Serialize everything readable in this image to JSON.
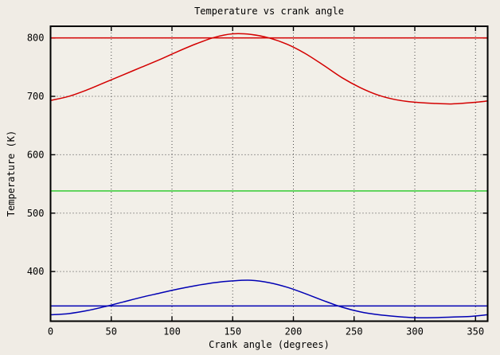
{
  "chart_data": {
    "type": "line",
    "title": "Temperature vs crank angle",
    "xlabel": "Crank angle (degrees)",
    "ylabel": "Temperature (K)",
    "xlim": [
      0,
      360
    ],
    "ylim": [
      315,
      820
    ],
    "x_ticks": [
      0,
      50,
      100,
      150,
      200,
      250,
      300,
      350
    ],
    "y_ticks": [
      400,
      500,
      600,
      700,
      800
    ],
    "grid": true,
    "legend": "none",
    "series": [
      {
        "name": "red-curve",
        "color": "#d40000",
        "style": "curve",
        "x": [
          0,
          15,
          30,
          45,
          60,
          75,
          90,
          105,
          120,
          135,
          150,
          165,
          180,
          195,
          210,
          225,
          240,
          255,
          270,
          285,
          300,
          315,
          330,
          345,
          360
        ],
        "y": [
          693,
          700,
          711,
          724,
          737,
          750,
          763,
          777,
          790,
          801,
          807,
          806,
          800,
          789,
          773,
          753,
          732,
          715,
          702,
          694,
          690,
          688,
          687,
          689,
          692
        ]
      },
      {
        "name": "red-horizontal-line",
        "color": "#d40000",
        "style": "hline",
        "value": 800
      },
      {
        "name": "green-horizontal-line",
        "color": "#33cc33",
        "style": "hline",
        "value": 538
      },
      {
        "name": "blue-curve",
        "color": "#0000b4",
        "style": "curve",
        "x": [
          0,
          15,
          30,
          45,
          60,
          75,
          90,
          105,
          120,
          135,
          150,
          165,
          180,
          195,
          210,
          225,
          240,
          255,
          270,
          285,
          300,
          315,
          330,
          345,
          360
        ],
        "y": [
          326,
          328,
          333,
          340,
          348,
          356,
          363,
          370,
          376,
          381,
          384,
          385,
          381,
          373,
          362,
          350,
          339,
          331,
          326,
          323,
          321,
          321,
          322,
          323,
          326
        ]
      },
      {
        "name": "blue-horizontal-line",
        "color": "#0000b4",
        "style": "hline",
        "value": 341
      }
    ],
    "plot_colors": {
      "background": "#f0ece5",
      "plot_background": "#f2efe8",
      "border": "#000000",
      "grid": "#4a4a4a"
    }
  }
}
